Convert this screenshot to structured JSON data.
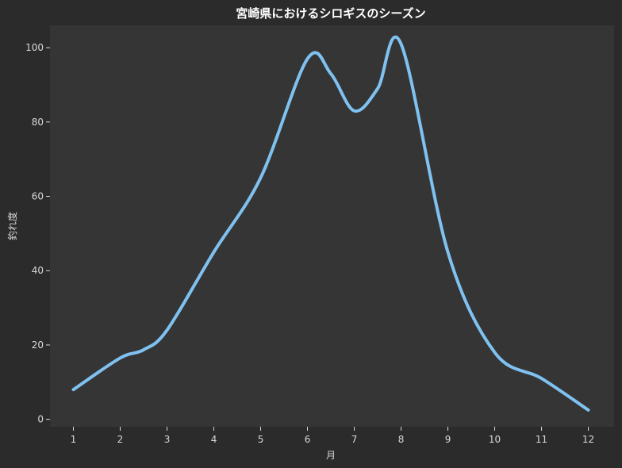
{
  "chart_data": {
    "type": "line",
    "title": "宮崎県におけるシロギスのシーズン",
    "xlabel": "月",
    "ylabel": "釣れ度",
    "x": [
      1,
      2,
      2.5,
      3,
      4,
      5,
      6,
      6.5,
      7,
      7.5,
      8,
      9,
      10,
      11,
      12
    ],
    "series": [
      {
        "values": [
          8,
          16.5,
          18.7,
          24,
          45,
          65,
          97,
          93,
          83,
          89,
          101,
          45,
          18,
          11,
          2.5
        ]
      }
    ],
    "xticks": [
      1,
      2,
      3,
      4,
      5,
      6,
      7,
      8,
      9,
      10,
      11,
      12
    ],
    "yticks": [
      0,
      20,
      40,
      60,
      80,
      100
    ],
    "xlim": [
      0.5,
      12.55
    ],
    "ylim": [
      -2,
      106
    ],
    "grid": false,
    "legend": "none",
    "colors": {
      "background": "#2b2b2b",
      "plot_area": "#353535",
      "line": "#7fc1f0",
      "text": "#d8d8d8",
      "title": "#ffffff"
    }
  }
}
